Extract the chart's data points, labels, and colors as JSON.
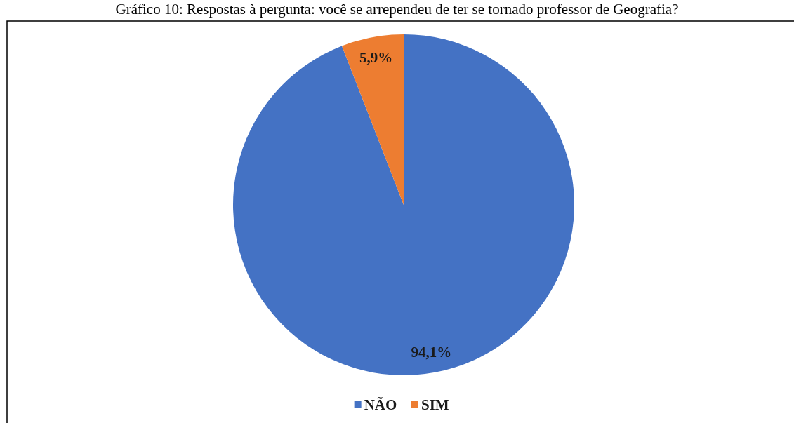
{
  "chart_data": {
    "type": "pie",
    "title": "Gráfico 10: Respostas à pergunta: você se arrependeu de ter se tornado professor de Geografia?",
    "categories": [
      "NÃO",
      "SIM"
    ],
    "values": [
      94.1,
      5.9
    ],
    "colors": [
      "#4472c4",
      "#ed7d31"
    ],
    "value_labels": [
      "94,1%",
      "5,9%"
    ],
    "legend": "bottom"
  }
}
